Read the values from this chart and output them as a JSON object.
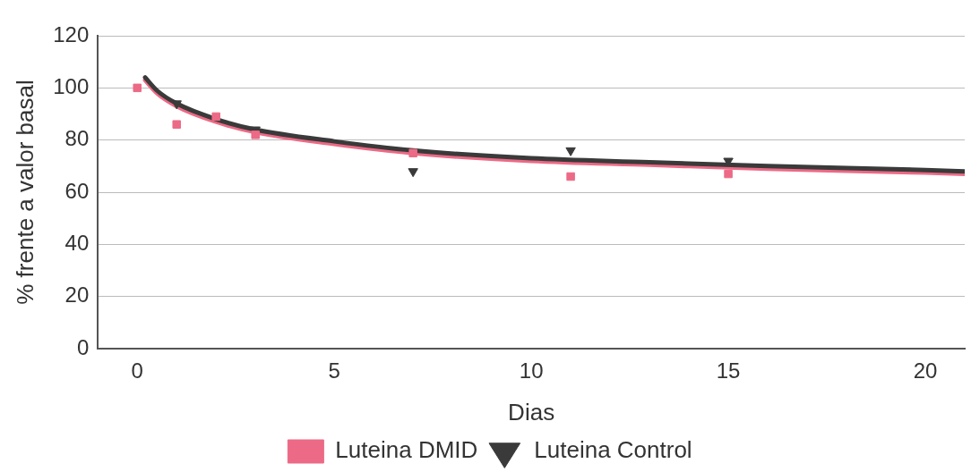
{
  "chart_data": {
    "type": "scatter",
    "xlabel": "Dias",
    "ylabel": "% frente a valor basal",
    "xlim": [
      -1,
      21
    ],
    "xticks": [
      0,
      5,
      10,
      15,
      20
    ],
    "ylim": [
      0,
      120
    ],
    "yticks": [
      0,
      20,
      40,
      60,
      80,
      100,
      120
    ],
    "grid": "y",
    "legend": "bottom",
    "series": [
      {
        "type": "line",
        "color": "#3a3a3a",
        "marker": "none",
        "x": [
          0.2,
          0.5,
          1,
          2,
          3,
          5,
          7,
          10,
          13,
          16,
          20,
          21
        ],
        "values": [
          104,
          99,
          94,
          88,
          84,
          79.5,
          76,
          73,
          71.5,
          70,
          68.5,
          68
        ]
      },
      {
        "type": "line",
        "color": "#ec6a86",
        "marker": "none",
        "x": [
          0.2,
          0.5,
          1,
          2,
          3,
          5,
          7,
          10,
          13,
          16,
          20,
          21
        ],
        "values": [
          103,
          98,
          93,
          87,
          83,
          78.5,
          75,
          72,
          70.5,
          69,
          67.5,
          67
        ]
      },
      {
        "name": "Luteina DMID",
        "color": "#ec6a86",
        "marker": "square",
        "x": [
          0,
          1,
          2,
          3,
          7,
          11,
          15
        ],
        "values": [
          100,
          86,
          89,
          82,
          75,
          66,
          67
        ]
      },
      {
        "name": "Luteina Control",
        "color": "#3a3a3a",
        "marker": "triangle",
        "x": [
          1,
          3,
          7,
          11,
          15
        ],
        "values": [
          94,
          84,
          68,
          76,
          72
        ]
      }
    ]
  }
}
